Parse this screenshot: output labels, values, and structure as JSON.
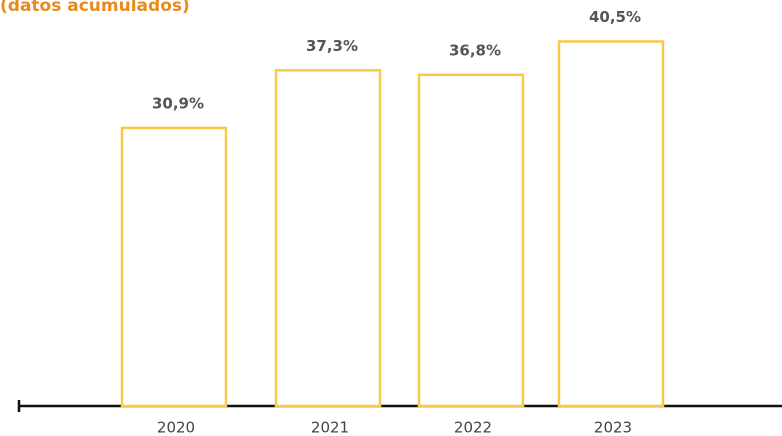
{
  "chart_data": {
    "type": "bar",
    "title": "(datos acumulados)",
    "categories": [
      "2020",
      "2021",
      "2022",
      "2023"
    ],
    "values": [
      30.9,
      37.3,
      36.8,
      40.5
    ],
    "value_labels": [
      "30,9%",
      "37,3%",
      "36,8%",
      "40,5%"
    ],
    "color": "#f7c948"
  }
}
